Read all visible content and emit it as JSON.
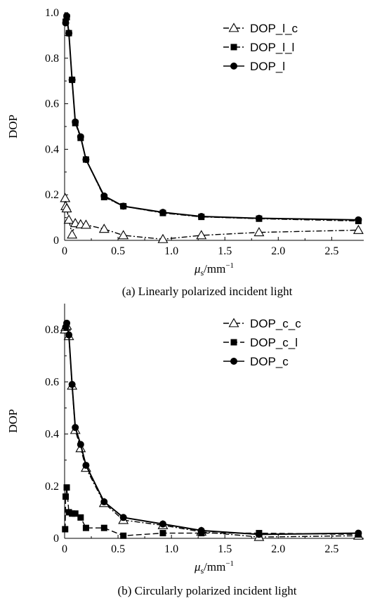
{
  "chart_data": [
    {
      "type": "line",
      "caption": "(a) Linearly polarized incident light",
      "xlabel_main": "μ",
      "xlabel_sub": "s",
      "xlabel_unit": "/mm",
      "xlabel_sup": "−1",
      "ylabel": "DOP",
      "xlim": [
        0,
        2.8
      ],
      "ylim": [
        0,
        1.0
      ],
      "xticks": [
        0,
        0.5,
        1.0,
        1.5,
        2.0,
        2.5
      ],
      "xtick_labels": [
        "0",
        "0.5",
        "1.0",
        "1.5",
        "2.0",
        "2.5"
      ],
      "yticks": [
        0,
        0.2,
        0.4,
        0.6,
        0.8,
        1.0
      ],
      "ytick_labels": [
        "0",
        "0.2",
        "0.4",
        "0.6",
        "0.8",
        "1.0"
      ],
      "legend_position": "top-right",
      "series": [
        {
          "name": "DOP_l_c",
          "marker": "triangle-open",
          "dash": "dash-dot",
          "x": [
            0.005,
            0.01,
            0.02,
            0.04,
            0.07,
            0.1,
            0.15,
            0.2,
            0.37,
            0.55,
            0.92,
            1.28,
            1.82,
            2.75
          ],
          "y": [
            0.185,
            0.15,
            0.14,
            0.09,
            0.025,
            0.075,
            0.07,
            0.068,
            0.05,
            0.022,
            0.005,
            0.022,
            0.035,
            0.045
          ]
        },
        {
          "name": "DOP_l_l",
          "marker": "square-filled",
          "dash": "dash-dot",
          "x": [
            0.01,
            0.02,
            0.04,
            0.07,
            0.1,
            0.15,
            0.2,
            0.37,
            0.55,
            0.92,
            1.28,
            1.82,
            2.75
          ],
          "y": [
            0.96,
            0.98,
            0.91,
            0.705,
            0.515,
            0.45,
            0.355,
            0.19,
            0.15,
            0.12,
            0.103,
            0.095,
            0.085
          ]
        },
        {
          "name": "DOP_l",
          "marker": "circle-filled",
          "dash": "solid",
          "x": [
            0.01,
            0.02,
            0.04,
            0.07,
            0.1,
            0.15,
            0.2,
            0.37,
            0.55,
            0.92,
            1.28,
            1.82,
            2.75
          ],
          "y": [
            0.955,
            0.985,
            0.91,
            0.705,
            0.52,
            0.455,
            0.355,
            0.195,
            0.15,
            0.123,
            0.105,
            0.097,
            0.09
          ]
        }
      ]
    },
    {
      "type": "line",
      "caption": "(b) Circularly polarized incident light",
      "xlabel_main": "μ",
      "xlabel_sub": "s",
      "xlabel_unit": "/mm",
      "xlabel_sup": "−1",
      "ylabel": "DOP",
      "xlim": [
        0,
        2.8
      ],
      "ylim": [
        0,
        0.9
      ],
      "xticks": [
        0,
        0.5,
        1.0,
        1.5,
        2.0,
        2.5
      ],
      "xtick_labels": [
        "0",
        "0.5",
        "1.0",
        "1.5",
        "2.0",
        "2.5"
      ],
      "yticks": [
        0,
        0.2,
        0.4,
        0.6,
        0.8
      ],
      "ytick_labels": [
        "0",
        "0.2",
        "0.4",
        "0.6",
        "0.8"
      ],
      "legend_position": "top-right",
      "series": [
        {
          "name": "DOP_c_c",
          "marker": "triangle-open",
          "dash": "dash-dot",
          "x": [
            0.005,
            0.01,
            0.02,
            0.04,
            0.07,
            0.1,
            0.15,
            0.2,
            0.37,
            0.55,
            0.92,
            1.28,
            1.82,
            2.75
          ],
          "y": [
            0.8,
            0.81,
            0.815,
            0.775,
            0.585,
            0.415,
            0.345,
            0.27,
            0.135,
            0.07,
            0.05,
            0.025,
            0.005,
            0.01
          ]
        },
        {
          "name": "DOP_c_l",
          "marker": "square-filled",
          "dash": "dash",
          "x": [
            0.005,
            0.01,
            0.02,
            0.04,
            0.07,
            0.1,
            0.15,
            0.2,
            0.37,
            0.55,
            0.92,
            1.28,
            1.82,
            2.75
          ],
          "y": [
            0.035,
            0.16,
            0.195,
            0.1,
            0.095,
            0.095,
            0.08,
            0.04,
            0.04,
            0.01,
            0.02,
            0.02,
            0.02,
            0.015
          ]
        },
        {
          "name": "DOP_c",
          "marker": "circle-filled",
          "dash": "solid",
          "x": [
            0.01,
            0.02,
            0.04,
            0.07,
            0.1,
            0.15,
            0.2,
            0.37,
            0.55,
            0.92,
            1.28,
            1.82,
            2.75
          ],
          "y": [
            0.81,
            0.825,
            0.78,
            0.59,
            0.425,
            0.36,
            0.28,
            0.14,
            0.08,
            0.055,
            0.03,
            0.015,
            0.02
          ]
        }
      ]
    }
  ]
}
